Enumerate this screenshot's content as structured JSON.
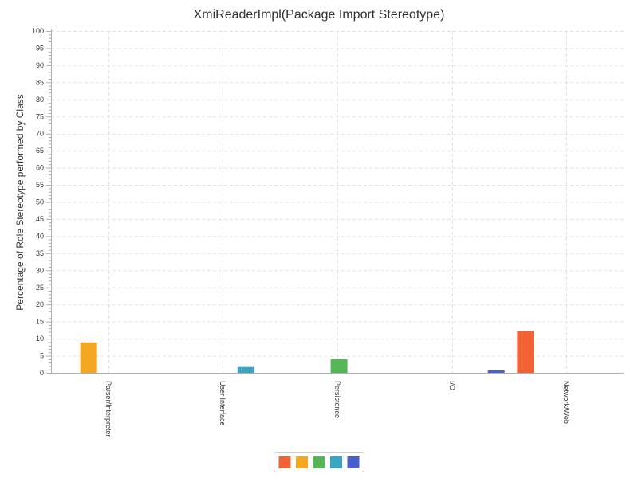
{
  "chart_data": {
    "type": "bar",
    "title": "XmiReaderImpl(Package Import Stereotype)",
    "xlabel": "",
    "ylabel": "Percentage of Role Stereotype performed by Class",
    "ylim": [
      0,
      100
    ],
    "y_ticks": [
      0,
      5,
      10,
      15,
      20,
      25,
      30,
      35,
      40,
      45,
      50,
      55,
      60,
      65,
      70,
      75,
      80,
      85,
      90,
      95,
      100
    ],
    "grid": true,
    "legend_placement": "bottom-center",
    "categories": [
      "Parser/Interpreter",
      "User Interface",
      "Persistence",
      "I/O",
      "Network/Web"
    ],
    "series": [
      {
        "color": "#f26234",
        "values": [
          0,
          0,
          0,
          0,
          12.2
        ]
      },
      {
        "color": "#f5a623",
        "values": [
          8.9,
          0,
          0,
          0,
          0
        ]
      },
      {
        "color": "#56b556",
        "values": [
          0,
          0,
          4.0,
          0,
          0
        ]
      },
      {
        "color": "#3aa6c4",
        "values": [
          0,
          1.7,
          0,
          0,
          0
        ]
      },
      {
        "color": "#4a5fcf",
        "values": [
          0,
          0,
          0,
          0.7,
          0
        ]
      }
    ]
  }
}
